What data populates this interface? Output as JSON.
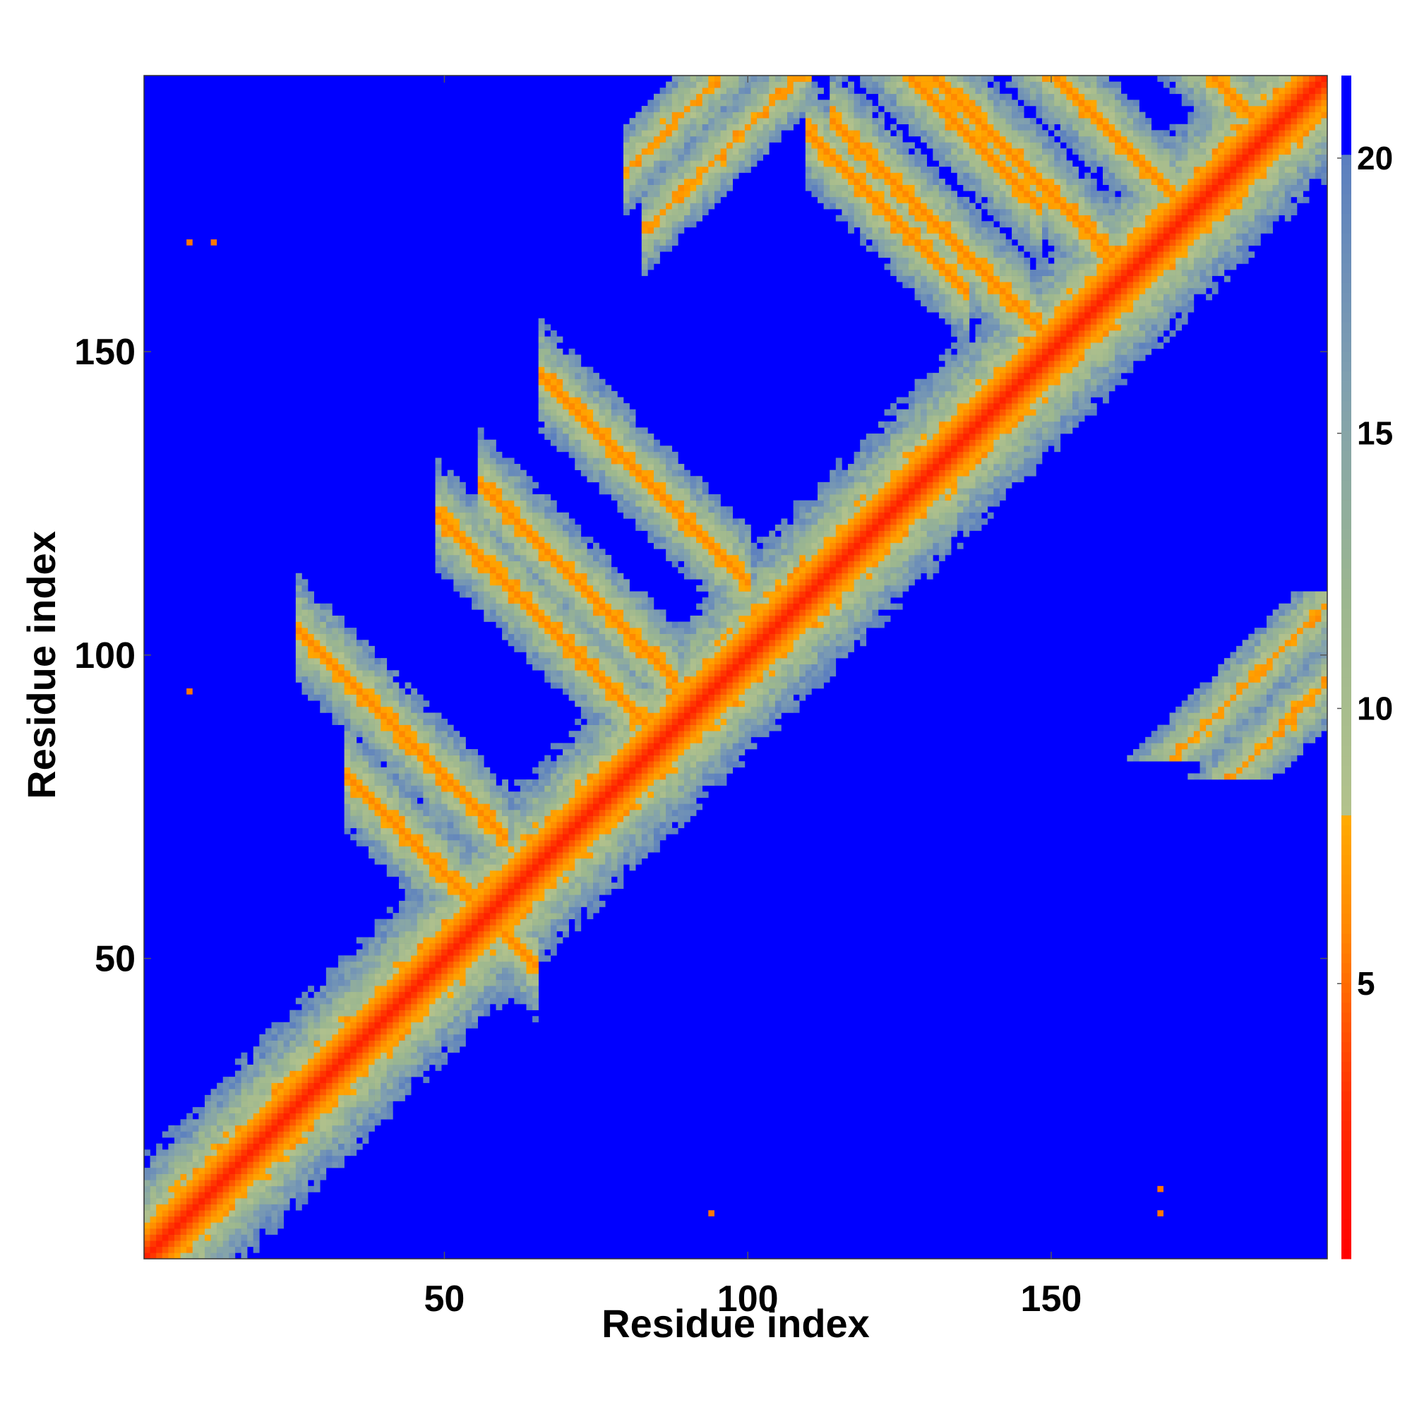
{
  "chart_data": {
    "type": "heatmap",
    "title": "",
    "xlabel": "Residue index",
    "ylabel": "Residue index",
    "n_residues": 195,
    "xlim": [
      1,
      195
    ],
    "ylim": [
      1,
      195
    ],
    "x_ticks": [
      50,
      100,
      150
    ],
    "y_ticks": [
      50,
      100,
      150
    ],
    "colorbar": {
      "ticks": [
        5,
        10,
        15,
        20
      ],
      "range": [
        0,
        21.5
      ],
      "stops": [
        {
          "value": 0,
          "color": "#ff0000"
        },
        {
          "value": 3,
          "color": "#ff3300"
        },
        {
          "value": 6,
          "color": "#ff8800"
        },
        {
          "value": 8,
          "color": "#ffaa00"
        },
        {
          "value": 8.01,
          "color": "#b3c28c"
        },
        {
          "value": 12,
          "color": "#9cb78f"
        },
        {
          "value": 16,
          "color": "#7f9fb0"
        },
        {
          "value": 20,
          "color": "#5b7fbf"
        },
        {
          "value": 20.01,
          "color": "#0000ff"
        },
        {
          "value": 21.5,
          "color": "#0000ff"
        }
      ],
      "cutoff_color": "#0000ff"
    },
    "background_value": 21.5,
    "structure": {
      "diagonal_band": [
        1,
        195
      ],
      "antiparallel_contacts": [
        {
          "center": 37,
          "from": 44,
          "to": 55
        },
        {
          "center": 66,
          "from": 59,
          "to": 73
        },
        {
          "center": 86,
          "from": 76,
          "to": 90
        },
        {
          "center": 72,
          "from": 66,
          "to": 78
        },
        {
          "center": 45,
          "from": 36,
          "to": 50
        },
        {
          "center": 131,
          "from": 124,
          "to": 139
        },
        {
          "center": 143,
          "from": 136,
          "to": 150
        },
        {
          "center": 166,
          "from": 158,
          "to": 173
        },
        {
          "center": 166,
          "from": 150,
          "to": 162
        },
        {
          "center": 128,
          "from": 120,
          "to": 126
        },
        {
          "center": 141,
          "from": 129,
          "to": 138
        },
        {
          "center": 153,
          "from": 150,
          "to": 165
        }
      ],
      "parallel_contacts": [
        {
          "offset": 87,
          "from": 89,
          "to": 104
        },
        {
          "offset": 100,
          "from": 86,
          "to": 95
        }
      ],
      "isolated_points": [
        {
          "i": 8,
          "j": 168
        },
        {
          "i": 12,
          "j": 168
        },
        {
          "i": 8,
          "j": 94
        },
        {
          "i": 94,
          "j": 8
        },
        {
          "i": 168,
          "j": 8
        },
        {
          "i": 168,
          "j": 12
        }
      ]
    }
  }
}
